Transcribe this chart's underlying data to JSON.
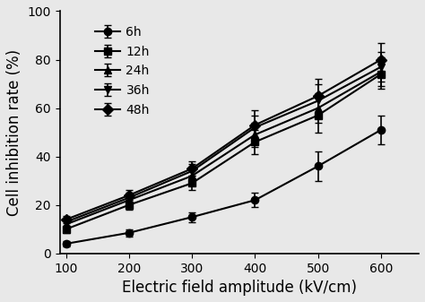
{
  "x": [
    100,
    200,
    300,
    400,
    500,
    600
  ],
  "series": {
    "6h": {
      "y": [
        4,
        8.5,
        15,
        22,
        36,
        51
      ],
      "yerr": [
        1,
        1.5,
        2,
        3,
        6,
        6
      ],
      "marker": "o",
      "label": "6h"
    },
    "12h": {
      "y": [
        10,
        20,
        29,
        46,
        57,
        74
      ],
      "yerr": [
        1.5,
        2,
        3,
        5,
        7,
        6
      ],
      "marker": "s",
      "label": "12h"
    },
    "24h": {
      "y": [
        12,
        22,
        32,
        49,
        60,
        75
      ],
      "yerr": [
        1.5,
        2,
        3,
        5,
        6,
        6
      ],
      "marker": "^",
      "label": "24h"
    },
    "36h": {
      "y": [
        13,
        23,
        34,
        52,
        63,
        77
      ],
      "yerr": [
        1.5,
        2,
        3,
        5,
        7,
        6
      ],
      "marker": "v",
      "label": "36h"
    },
    "48h": {
      "y": [
        14,
        24,
        35,
        53,
        65,
        80
      ],
      "yerr": [
        1.5,
        2,
        3,
        6,
        7,
        7
      ],
      "marker": "D",
      "label": "48h"
    }
  },
  "series_order": [
    "6h",
    "12h",
    "24h",
    "36h",
    "48h"
  ],
  "xlabel": "Electric field amplitude (kV/cm)",
  "ylabel": "Cell inhibition rate (%)",
  "ylim": [
    0,
    100
  ],
  "xlim": [
    90,
    660
  ],
  "xticks": [
    100,
    200,
    300,
    400,
    500,
    600
  ],
  "yticks": [
    0,
    20,
    40,
    60,
    80,
    100
  ],
  "line_color": "#000000",
  "line_width": 1.5,
  "marker_size": 6,
  "capsize": 3,
  "elinewidth": 1.2,
  "legend_fontsize": 10,
  "axis_fontsize": 12,
  "tick_fontsize": 10,
  "background_color": "#e8e8e8"
}
